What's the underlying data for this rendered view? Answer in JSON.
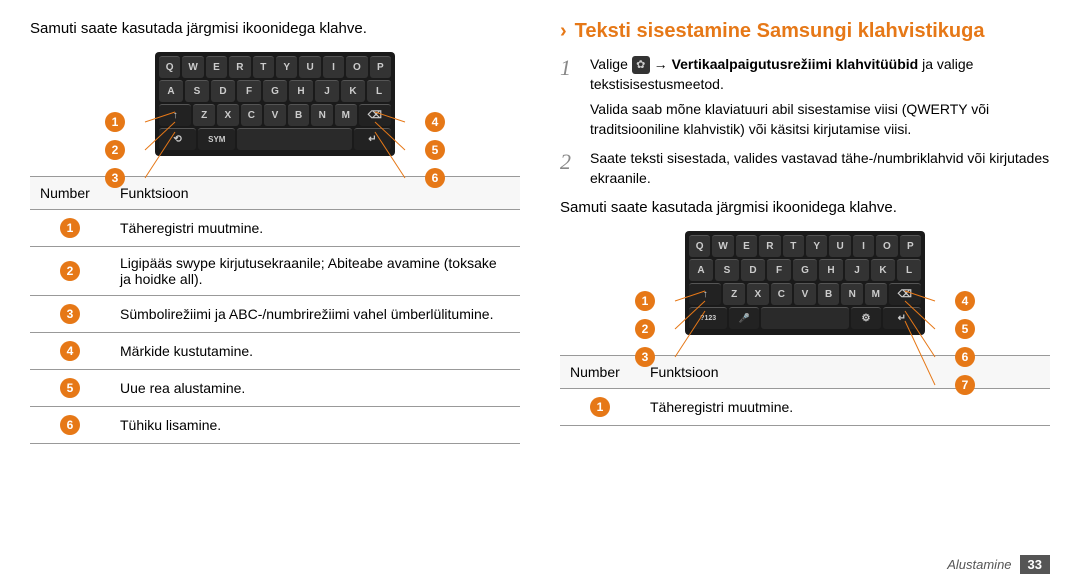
{
  "left": {
    "intro": "Samuti saate kasutada järgmisi ikoonidega klahve.",
    "keyboard": {
      "type": "keyboard",
      "rows": [
        [
          "Q",
          "W",
          "E",
          "R",
          "T",
          "Y",
          "U",
          "I",
          "O",
          "P"
        ],
        [
          "A",
          "S",
          "D",
          "F",
          "G",
          "H",
          "J",
          "K",
          "L"
        ],
        [
          "↑",
          "Z",
          "X",
          "C",
          "V",
          "B",
          "N",
          "M",
          "⌫"
        ],
        [
          "SYM",
          "",
          "",
          "↵"
        ]
      ],
      "bg": "#1a1a1a",
      "key_bg": "#333333",
      "key_fg": "#cccccc"
    },
    "callouts_left": [
      "1",
      "2",
      "3"
    ],
    "callouts_right": [
      "4",
      "5",
      "6"
    ],
    "callout_color": "#e67817",
    "table": {
      "columns": [
        "Number",
        "Funktsioon"
      ],
      "rows": [
        [
          "1",
          "Täheregistri muutmine."
        ],
        [
          "2",
          "Ligipääs swype kirjutusekraanile; Abiteabe avamine (toksake ja hoidke all)."
        ],
        [
          "3",
          "Sümbolirežiimi ja ABC-/numbrirežiimi vahel ümberlülitumine."
        ],
        [
          "4",
          "Märkide kustutamine."
        ],
        [
          "5",
          "Uue rea alustamine."
        ],
        [
          "6",
          "Tühiku lisamine."
        ]
      ]
    }
  },
  "right": {
    "heading": "Teksti sisestamine Samsungi klahvistikuga",
    "heading_color": "#e67817",
    "steps": [
      {
        "num": "1",
        "lines": [
          "Valige {gear} → <b>Vertikaalpaigutusrežiimi klahvitüübid</b> ja valige tekstisisestusmeetod.",
          "Valida saab mõne klaviatuuri abil sisestamise viisi (QWERTY või traditsiooniline klahvistik) või käsitsi kirjutamise viisi."
        ]
      },
      {
        "num": "2",
        "lines": [
          "Saate teksti sisestada, valides vastavad tähe-/numbriklahvid või kirjutades ekraanile."
        ]
      }
    ],
    "intro2": "Samuti saate kasutada järgmisi ikoonidega klahve.",
    "keyboard2": {
      "type": "keyboard",
      "rows": [
        [
          "Q",
          "W",
          "E",
          "R",
          "T",
          "Y",
          "U",
          "I",
          "O",
          "P"
        ],
        [
          "A",
          "S",
          "D",
          "F",
          "G",
          "H",
          "J",
          "K",
          "L"
        ],
        [
          "↑",
          "Z",
          "X",
          "C",
          "V",
          "B",
          "N",
          "M",
          "⌫"
        ],
        [
          "?123",
          "🎤",
          "",
          "⚙",
          "↵"
        ]
      ],
      "bg": "#1a1a1a",
      "key_bg": "#333333",
      "key_fg": "#cccccc"
    },
    "callouts_left": [
      "1",
      "2",
      "3"
    ],
    "callouts_right": [
      "4",
      "5",
      "6",
      "7"
    ],
    "table2": {
      "columns": [
        "Number",
        "Funktsioon"
      ],
      "rows": [
        [
          "1",
          "Täheregistri muutmine."
        ]
      ]
    }
  },
  "footer": {
    "text": "Alustamine",
    "page": "33"
  }
}
